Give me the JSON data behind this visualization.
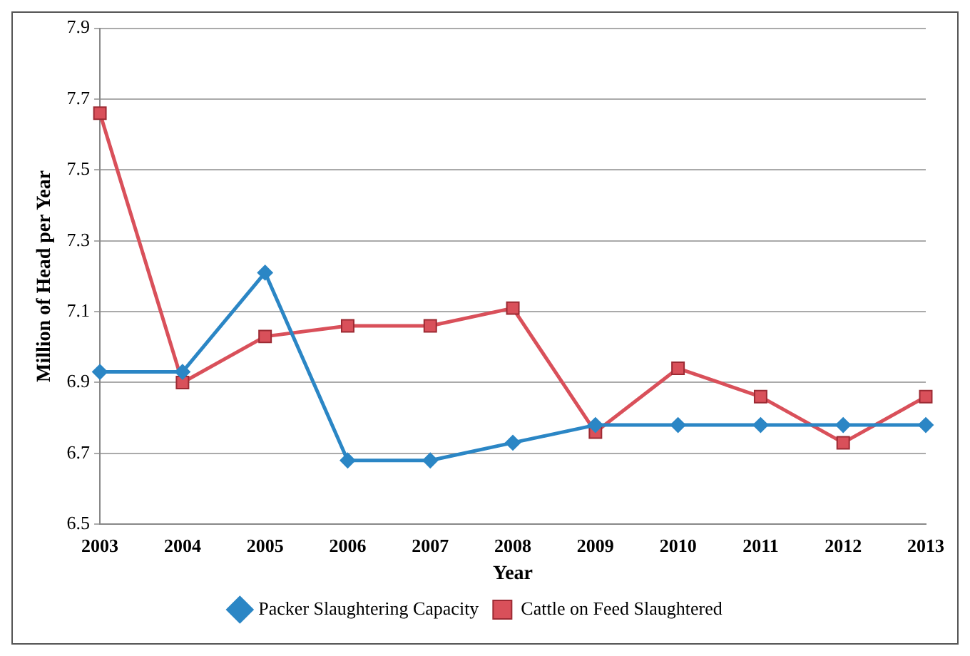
{
  "chart_data": {
    "type": "line",
    "xlabel": "Year",
    "ylabel": "Million of Head per Year",
    "categories": [
      "2003",
      "2004",
      "2005",
      "2006",
      "2007",
      "2008",
      "2009",
      "2010",
      "2011",
      "2012",
      "2013"
    ],
    "series": [
      {
        "name": "Packer Slaughtering Capacity",
        "color": "#2b86c5",
        "marker": "diamond",
        "values": [
          6.93,
          6.93,
          7.21,
          6.68,
          6.68,
          6.73,
          6.78,
          6.78,
          6.78,
          6.78,
          6.78
        ]
      },
      {
        "name": "Cattle on Feed Slaughtered",
        "color": "#d9505a",
        "marker": "square",
        "values": [
          7.66,
          6.9,
          7.03,
          7.06,
          7.06,
          7.11,
          6.76,
          6.94,
          6.86,
          6.73,
          6.86
        ]
      }
    ],
    "ylim": [
      6.5,
      7.9
    ],
    "yticks": [
      6.5,
      6.7,
      6.9,
      7.1,
      7.3,
      7.5,
      7.7,
      7.9
    ],
    "grid": "y",
    "legend": "bottom",
    "line_style": "solid"
  }
}
